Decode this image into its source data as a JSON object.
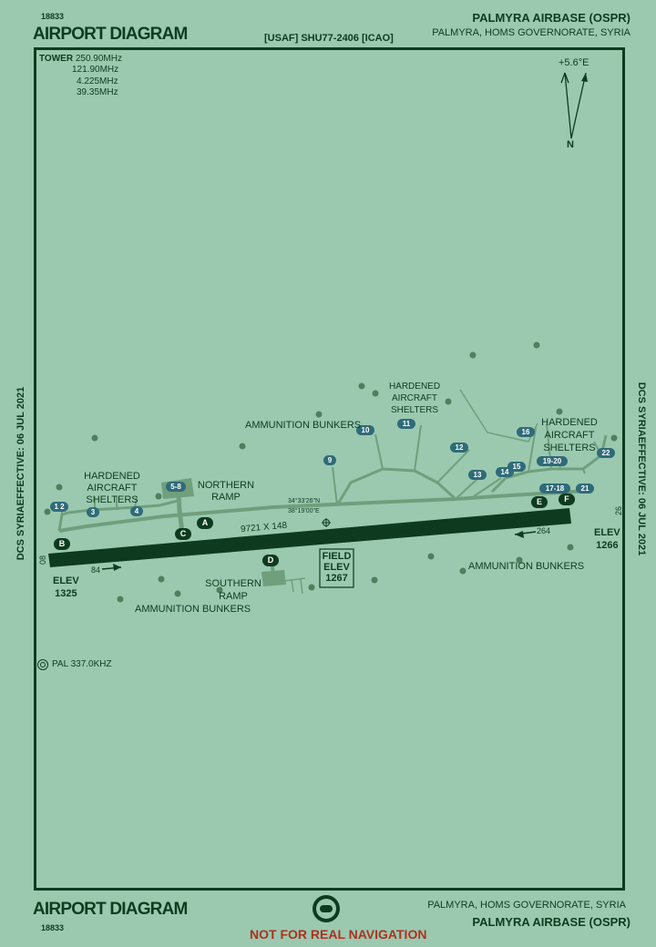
{
  "header": {
    "chart_number": "18833",
    "title": "AIRPORT DIAGRAM",
    "reference": "[USAF] SHU77-2406 [ICAO]",
    "airport_name": "PALMYRA AIRBASE (OSPR)",
    "location": "PALMYRA,  HOMS GOVERNORATE,  SYRIA"
  },
  "footer": {
    "title": "AIRPORT DIAGRAM",
    "chart_number": "18833",
    "location": "PALMYRA,  HOMS GOVERNORATE,  SYRIA",
    "airport_name": "PALMYRA AIRBASE (OSPR)",
    "warning": "NOT FOR REAL NAVIGATION"
  },
  "side_text": {
    "left": "DCS SYRIAEFFECTIVE: 06 JUL 2021",
    "right": "DCS SYRIAEFFECTIVE: 06 JUL 2021"
  },
  "frequencies": {
    "label": "TOWER",
    "values": [
      "250.90MHz",
      "121.90MHz",
      "4.225MHz",
      "39.35MHz"
    ]
  },
  "magnetic": {
    "variation": "+5.6°E",
    "north_label": "N"
  },
  "runway": {
    "dimensions": "9721  X 148",
    "end_west": "08",
    "end_east": "26",
    "heading_west": "84",
    "heading_east": "264"
  },
  "elevations": {
    "west": {
      "label": "ELEV",
      "value": "1325"
    },
    "east": {
      "label": "ELEV",
      "value": "1266"
    },
    "field": {
      "label": "FIELD ELEV",
      "line1": "FIELD",
      "line2": "ELEV",
      "value": "1267"
    }
  },
  "coordinates": {
    "lat": "34°33'26\"N",
    "lon": "38°19'00\"E"
  },
  "navaid": "PAL 337.0KHZ",
  "labels": {
    "hardened_west": [
      "HARDENED",
      "AIRCRAFT",
      "SHELTERS"
    ],
    "hardened_north": [
      "HARDENED",
      "AIRCRAFT",
      "SHELTERS"
    ],
    "hardened_east": [
      "HARDENED",
      "AIRCRAFT",
      "SHELTERS"
    ],
    "northern_ramp": [
      "NORTHERN",
      "RAMP"
    ],
    "southern_ramp": [
      "SOUTHERN",
      "RAMP"
    ],
    "ammo_north": "AMMUNITION BUNKERS",
    "ammo_southwest": "AMMUNITION BUNKERS",
    "ammo_southeast": "AMMUNITION BUNKERS"
  },
  "taxiways": [
    "A",
    "B",
    "C",
    "D",
    "E",
    "F"
  ],
  "parking_spots": [
    "1 2",
    "3",
    "4",
    "5-8",
    "9",
    "10",
    "11",
    "12",
    "13",
    "14",
    "15",
    "16",
    "19-20",
    "17-18",
    "21",
    "22"
  ],
  "colors": {
    "background": "#9ac9b0",
    "ink": "#0e3b1f",
    "runway": "#0e3b1f",
    "taxiway": "#6f9f7c",
    "parking_badge": "#2f6b78",
    "warning": "#b0301e"
  }
}
